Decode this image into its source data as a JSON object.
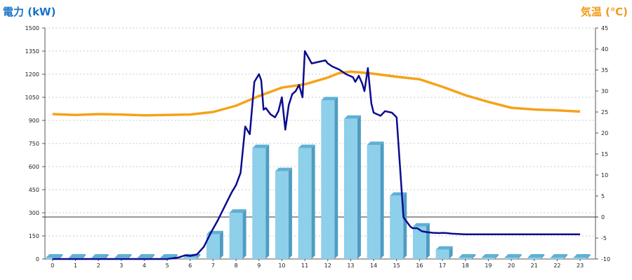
{
  "header": {
    "left_title": "電力 (kW)",
    "right_title": "気温 (℃)"
  },
  "colors": {
    "bar_face": "#8ecfea",
    "bar_side": "#4f9cc2",
    "bar_top": "#5fb0d6",
    "power_line": "#0b0b8f",
    "temp_line": "#f5a21a",
    "grid": "#c8c8c8",
    "zero_line": "#333333"
  },
  "chart_data": {
    "type": "bar",
    "categories": [
      "0",
      "1",
      "2",
      "3",
      "4",
      "5",
      "6",
      "7",
      "8",
      "9",
      "10",
      "11",
      "12",
      "13",
      "14",
      "15",
      "16",
      "17",
      "18",
      "19",
      "20",
      "21",
      "22",
      "23"
    ],
    "y_left_ticks": [
      "0",
      "150",
      "300",
      "450",
      "600",
      "750",
      "900",
      "1050",
      "1200",
      "1350",
      "1500"
    ],
    "y_right_ticks": [
      "-10",
      "-5",
      "0",
      "5",
      "10",
      "15",
      "20",
      "25",
      "30",
      "35",
      "40",
      "45"
    ],
    "ylim_left": [
      0,
      1500
    ],
    "ylim_right": [
      -10,
      45
    ],
    "grid": true,
    "bars": {
      "values": [
        5,
        5,
        5,
        5,
        5,
        5,
        10,
        160,
        300,
        720,
        570,
        720,
        1030,
        910,
        740,
        410,
        210,
        60,
        5,
        5,
        5,
        5,
        5,
        5
      ]
    },
    "power_line": {
      "x": [
        0,
        5.0,
        5.5,
        5.8,
        6.0,
        6.3,
        6.6,
        6.9,
        7.2,
        7.5,
        7.8,
        8.0,
        8.2,
        8.4,
        8.6,
        8.8,
        9.0,
        9.1,
        9.2,
        9.3,
        9.5,
        9.7,
        9.85,
        10.0,
        10.15,
        10.3,
        10.45,
        10.6,
        10.75,
        10.9,
        11.0,
        11.3,
        11.6,
        11.9,
        12.0,
        12.2,
        12.5,
        12.8,
        13.1,
        13.2,
        13.35,
        13.5,
        13.6,
        13.75,
        13.9,
        14.0,
        14.3,
        14.5,
        14.8,
        15.0,
        15.3,
        15.6,
        15.7,
        15.9,
        16.1,
        16.3,
        16.6,
        16.9,
        17.0,
        17.2,
        17.4,
        17.6,
        18,
        23
      ],
      "y": [
        0,
        0,
        10,
        25,
        20,
        30,
        80,
        170,
        250,
        340,
        430,
        480,
        560,
        860,
        810,
        1150,
        1200,
        1160,
        970,
        980,
        940,
        920,
        960,
        1050,
        840,
        1000,
        1070,
        1090,
        1130,
        1050,
        1350,
        1270,
        1280,
        1290,
        1270,
        1250,
        1230,
        1200,
        1180,
        1150,
        1190,
        1140,
        1090,
        1240,
        1010,
        950,
        930,
        960,
        950,
        920,
        270,
        210,
        200,
        200,
        180,
        175,
        170,
        168,
        170,
        168,
        165,
        163,
        160,
        160
      ]
    },
    "temp_line": {
      "x": [
        0,
        0.5,
        1,
        1.5,
        2,
        3,
        4,
        5,
        6,
        7,
        8,
        9,
        10,
        11,
        12,
        12.5,
        13,
        13.5,
        14,
        15,
        16,
        17,
        18,
        19,
        20,
        21,
        22,
        23
      ],
      "y": [
        24.5,
        24.4,
        24.3,
        24.4,
        24.5,
        24.4,
        24.2,
        24.3,
        24.4,
        25.0,
        26.5,
        28.8,
        30.8,
        31.6,
        33.2,
        34.3,
        34.6,
        34.4,
        34.1,
        33.4,
        32.8,
        31.0,
        29.0,
        27.4,
        26.0,
        25.6,
        25.4,
        25.1
      ]
    }
  }
}
